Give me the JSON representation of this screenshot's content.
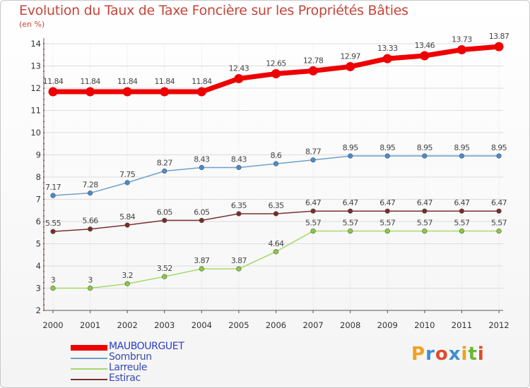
{
  "title": "Evolution du Taux de Taxe Foncière sur les Propriétés Bâties",
  "subtitle": "(en %)",
  "chart_data": {
    "type": "line",
    "title": "Evolution du Taux de Taxe Foncière sur les Propriétés Bâties",
    "ylabel": "(en %)",
    "xlabel": "",
    "ylim": [
      2,
      14
    ],
    "yticks": [
      2,
      3,
      4,
      5,
      6,
      7,
      8,
      9,
      10,
      11,
      12,
      13,
      14
    ],
    "categories": [
      "2000",
      "2001",
      "2002",
      "2003",
      "2004",
      "2005",
      "2006",
      "2007",
      "2008",
      "2009",
      "2010",
      "2011",
      "2012"
    ],
    "series": [
      {
        "name": "MAUBOURGUET",
        "color": "#ee0000",
        "emphasis": true,
        "values": [
          11.84,
          11.84,
          11.84,
          11.84,
          11.84,
          12.43,
          12.65,
          12.78,
          12.97,
          13.33,
          13.46,
          13.73,
          13.87
        ]
      },
      {
        "name": "Sombrun",
        "color": "#6f9fca",
        "marker": "#4a8ccc",
        "values": [
          7.17,
          7.28,
          7.75,
          8.27,
          8.43,
          8.43,
          8.6,
          8.77,
          8.95,
          8.95,
          8.95,
          8.95,
          8.95
        ]
      },
      {
        "name": "Larreule",
        "color": "#a6d96a",
        "marker": "#8acb3d",
        "values": [
          3,
          3,
          3.2,
          3.52,
          3.87,
          3.87,
          4.64,
          5.57,
          5.57,
          5.57,
          5.57,
          5.57,
          5.57
        ]
      },
      {
        "name": "Estirac",
        "color": "#7a3030",
        "marker": "#7a2a2a",
        "values": [
          5.55,
          5.66,
          5.84,
          6.05,
          6.05,
          6.35,
          6.35,
          6.47,
          6.47,
          6.47,
          6.47,
          6.47,
          6.47
        ]
      }
    ],
    "legend_position": "bottom-left"
  },
  "logo": {
    "text": "Proxiti",
    "letters": [
      "P",
      "r",
      "o",
      "x",
      "i",
      "t",
      "i"
    ],
    "colors": [
      "#f0a020",
      "#3a8fd0",
      "#e04a2a",
      "#3a8fd0",
      "#f0a020",
      "#6ab830",
      "#e04a2a"
    ]
  }
}
